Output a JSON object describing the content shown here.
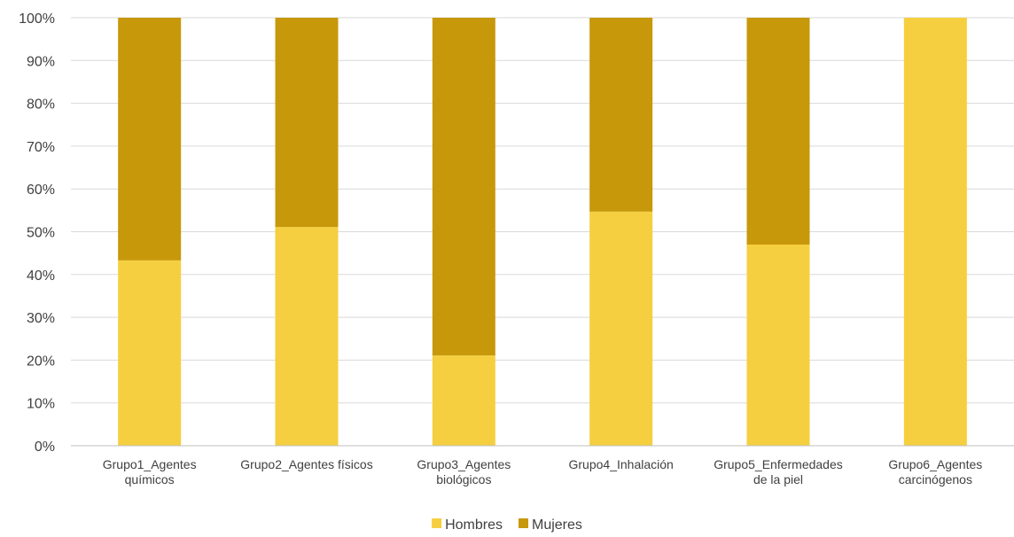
{
  "chart_data": {
    "type": "bar",
    "stacked": true,
    "percent_stacked": true,
    "categories": [
      [
        "Grupo1_Agentes",
        "químicos"
      ],
      [
        "Grupo2_Agentes físicos"
      ],
      [
        "Grupo3_Agentes",
        "biológicos"
      ],
      [
        "Grupo4_Inhalación"
      ],
      [
        "Grupo5_Enfermedades",
        "de la piel"
      ],
      [
        "Grupo6_Agentes",
        "carcinógenos"
      ]
    ],
    "series": [
      {
        "name": "Hombres",
        "color": "#F5CF3F",
        "values": [
          43.3,
          51.1,
          21.1,
          54.7,
          47.0,
          100.0
        ]
      },
      {
        "name": "Mujeres",
        "color": "#C8980B",
        "values": [
          56.7,
          48.9,
          78.9,
          45.3,
          53.0,
          0.0
        ]
      }
    ],
    "yticks": [
      "0%",
      "10%",
      "20%",
      "30%",
      "40%",
      "50%",
      "60%",
      "70%",
      "80%",
      "90%",
      "100%"
    ],
    "ylim": [
      0,
      100
    ],
    "grid": true,
    "legend_position": "bottom",
    "title": "",
    "xlabel": "",
    "ylabel": ""
  }
}
